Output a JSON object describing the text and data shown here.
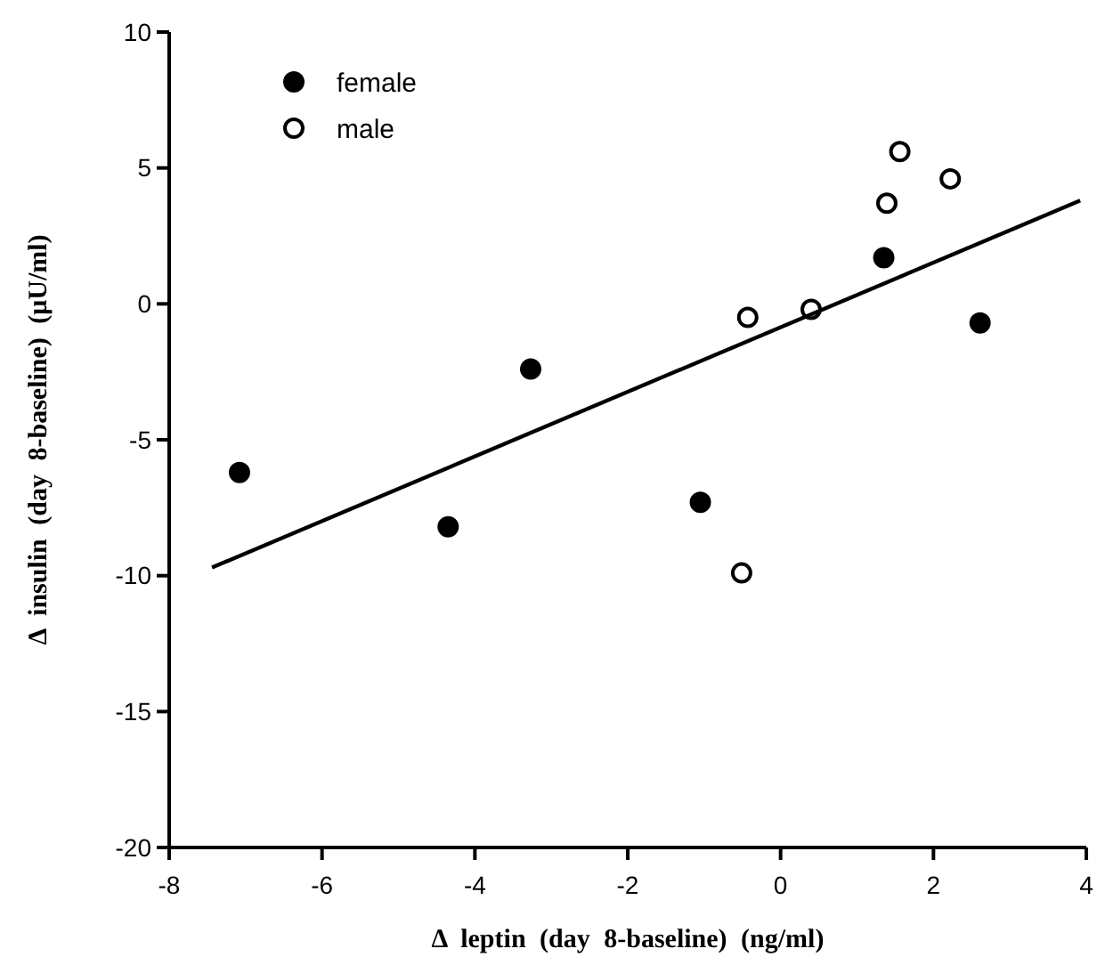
{
  "chart_data": {
    "type": "scatter",
    "xlabel": "Δ leptin (day 8-baseline) (ng/ml)",
    "ylabel": "Δ insulin (day 8-baseline) (μU/ml)",
    "xlim": [
      -8,
      4
    ],
    "xticks": [
      -8,
      -6,
      -4,
      -2,
      0,
      2,
      4
    ],
    "ylim": [
      -20,
      10
    ],
    "yticks": [
      -20,
      -15,
      -10,
      -5,
      0,
      5,
      10
    ],
    "grid": false,
    "legend": "top left",
    "series": [
      {
        "name": "female",
        "color": "#000000",
        "marker": "circle",
        "x": [
          -7.08,
          -4.35,
          -3.27,
          -1.05,
          1.35,
          2.61
        ],
        "values": [
          -6.2,
          -8.2,
          -2.4,
          -7.3,
          1.7,
          -0.7
        ]
      },
      {
        "name": "male",
        "color": "#ffffff",
        "marker": "circle",
        "x": [
          -0.43,
          -0.51,
          0.4,
          1.39,
          1.56,
          2.22
        ],
        "values": [
          -0.5,
          -9.9,
          -0.2,
          3.7,
          5.6,
          4.6
        ]
      },
      {
        "type": "line",
        "color": "#000000",
        "marker": "none",
        "x": [
          -7.44,
          3.92
        ],
        "values": [
          -9.7,
          3.8
        ]
      }
    ]
  }
}
